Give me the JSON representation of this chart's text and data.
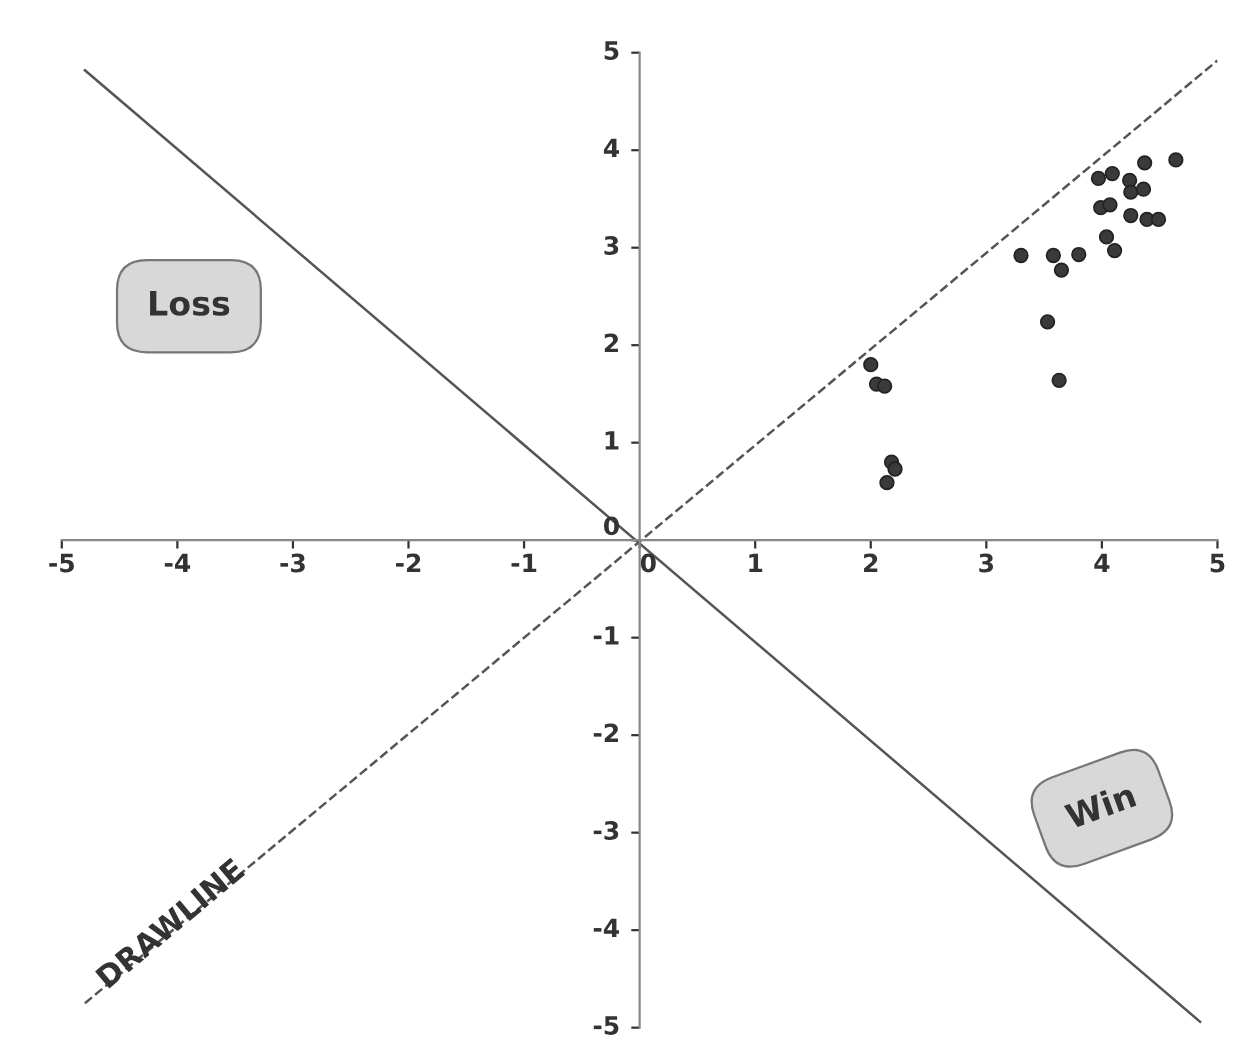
{
  "chart_data": {
    "type": "scatter",
    "xlim": [
      -5,
      5
    ],
    "ylim": [
      -5,
      5
    ],
    "xticks": [
      -5,
      -4,
      -3,
      -2,
      -1,
      0,
      1,
      2,
      3,
      4,
      5
    ],
    "yticks": [
      -5,
      -4,
      -3,
      -2,
      -1,
      0,
      1,
      2,
      3,
      4,
      5
    ],
    "grid": false,
    "series": [
      {
        "type": "line",
        "line_style": "dashed",
        "color": "#555555",
        "marker": "none",
        "x": [
          -4.8,
          5.0
        ],
        "values": [
          -4.75,
          4.92
        ]
      },
      {
        "type": "line",
        "line_style": "solid",
        "color": "#555555",
        "marker": "none",
        "x": [
          -4.8,
          4.85
        ],
        "values": [
          4.82,
          -4.94
        ]
      },
      {
        "marker": "circle",
        "color": "#3a3a3a",
        "x": [
          2.0,
          2.05,
          2.12,
          2.18,
          2.21,
          2.14,
          3.3,
          3.58,
          3.65,
          3.8,
          3.53,
          3.63,
          4.04,
          4.11,
          3.97,
          4.09,
          4.24,
          4.37,
          4.25,
          4.36,
          3.99,
          4.07,
          4.25,
          4.39,
          4.49,
          4.64
        ],
        "values": [
          1.8,
          1.6,
          1.58,
          0.8,
          0.73,
          0.59,
          2.92,
          2.92,
          2.77,
          2.93,
          2.24,
          1.64,
          3.11,
          2.97,
          3.71,
          3.76,
          3.69,
          3.87,
          3.57,
          3.6,
          3.41,
          3.44,
          3.33,
          3.29,
          3.29,
          3.9
        ]
      }
    ],
    "annotations": [
      "Loss",
      "Win",
      "DRAWLINE"
    ]
  }
}
